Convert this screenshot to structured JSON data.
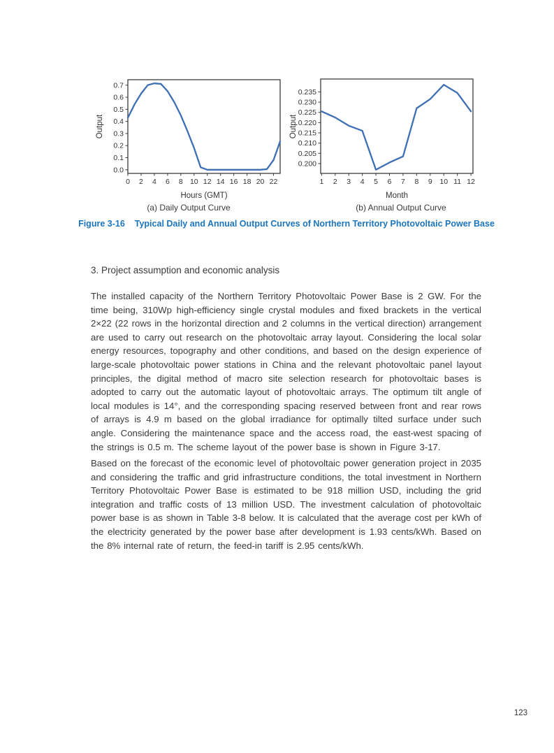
{
  "page": {
    "number": "123"
  },
  "figure": {
    "label": "Figure 3-16",
    "title": "Typical Daily and Annual Output Curves of Northern Territory Photovoltaic Power Base",
    "caption_color": "#1b75bc"
  },
  "section": {
    "heading": "3. Project assumption and economic analysis",
    "paragraphs": [
      "The installed capacity of the Northern Territory Photovoltaic Power Base is 2 GW. For the time being, 310Wp high-efficiency single crystal modules and fixed brackets in the vertical 2×22 (22 rows in the horizontal direction and 2 columns in the vertical direction) arrangement are used to carry out research on the photovoltaic array layout. Considering the local solar energy resources, topography and other conditions, and based on the design experience of large-scale photovoltaic power stations in China and the relevant photovoltaic panel layout principles, the digital method of macro site selection research for photovoltaic bases is adopted to carry out the automatic layout of photovoltaic arrays. The optimum tilt angle of local modules is 14°, and the corresponding spacing reserved between front and rear rows of arrays is 4.9 m based on the global irradiance for optimally tilted surface under such angle. Considering the maintenance space and the access road, the east-west spacing of the strings is 0.5 m. The scheme layout of the power base is shown in Figure 3-17.",
      "Based on the forecast of the economic level of photovoltaic power generation project in 2035 and considering the traffic and grid infrastructure conditions, the total investment in Northern Territory Photovoltaic Power Base is estimated to be 918 million USD, including the grid integration and traffic costs of 13 million USD. The investment calculation of photovoltaic power base is as shown in Table 3-8 below. It is calculated that the average cost per kWh of the electricity generated by the power base after development is 1.93 cents/kWh. Based on the 8% internal rate of return, the feed-in tariff is 2.95 cents/kWh."
    ]
  },
  "chart_data": [
    {
      "type": "line",
      "caption": "(a) Daily Output Curve",
      "xlabel": "Hours (GMT)",
      "ylabel": "Output",
      "x": [
        0,
        1,
        2,
        3,
        4,
        5,
        6,
        7,
        8,
        9,
        10,
        11,
        12,
        13,
        14,
        15,
        16,
        17,
        18,
        19,
        20,
        21,
        22,
        23
      ],
      "values": [
        0.43,
        0.54,
        0.63,
        0.7,
        0.715,
        0.71,
        0.65,
        0.56,
        0.45,
        0.32,
        0.18,
        0.02,
        0.0,
        0.0,
        0.0,
        0.0,
        0.0,
        0.0,
        0.0,
        0.0,
        0.0,
        0.005,
        0.08,
        0.235
      ],
      "xtick_values": [
        0,
        2,
        4,
        6,
        8,
        10,
        12,
        14,
        16,
        18,
        20,
        22
      ],
      "xtick_labels": [
        "0",
        "2",
        "4",
        "6",
        "8",
        "10",
        "12",
        "14",
        "16",
        "18",
        "20",
        "22"
      ],
      "ytick_values": [
        0.0,
        0.1,
        0.2,
        0.3,
        0.4,
        0.5,
        0.6,
        0.7
      ],
      "ytick_labels": [
        "0.0",
        "0.1",
        "0.2",
        "0.3",
        "0.4",
        "0.5",
        "0.6",
        "0.7"
      ],
      "xlim": [
        0,
        23
      ],
      "ylim": [
        -0.03,
        0.745
      ],
      "grid": false,
      "legend": "none",
      "line_color": "#3e6fb4"
    },
    {
      "type": "line",
      "caption": "(b) Annual Output Curve",
      "xlabel": "Month",
      "ylabel": "Output",
      "x": [
        1,
        2,
        3,
        4,
        5,
        6,
        7,
        8,
        9,
        10,
        11,
        12
      ],
      "values": [
        0.2255,
        0.2225,
        0.2185,
        0.216,
        0.197,
        0.2005,
        0.2035,
        0.227,
        0.2315,
        0.2385,
        0.2345,
        0.2255
      ],
      "xtick_values": [
        1,
        2,
        3,
        4,
        5,
        6,
        7,
        8,
        9,
        10,
        11,
        12
      ],
      "xtick_labels": [
        "1",
        "2",
        "3",
        "4",
        "5",
        "6",
        "7",
        "8",
        "9",
        "10",
        "11",
        "12"
      ],
      "ytick_values": [
        0.2,
        0.205,
        0.21,
        0.215,
        0.22,
        0.225,
        0.23,
        0.235
      ],
      "ytick_labels": [
        "0.200",
        "0.205",
        "0.210",
        "0.215",
        "0.220",
        "0.225",
        "0.230",
        "0.235"
      ],
      "xlim": [
        0.93,
        12.15
      ],
      "ylim": [
        0.1952,
        0.2413
      ],
      "grid": false,
      "legend": "none",
      "line_color": "#3e6fb4"
    }
  ]
}
